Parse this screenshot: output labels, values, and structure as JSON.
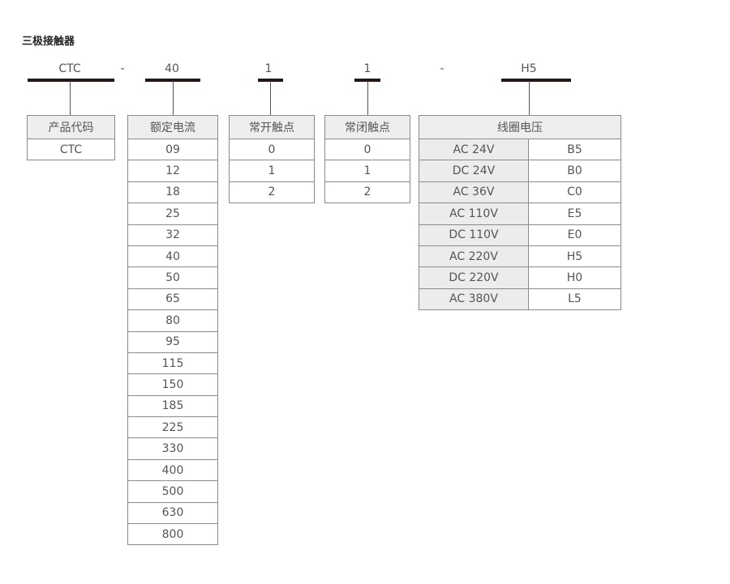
{
  "title": "三极接触器",
  "code": {
    "product": "CTC",
    "sep1": "-",
    "current": "40",
    "no_contact": "1",
    "nc_contact": "1",
    "sep2": "-",
    "coil": "H5"
  },
  "tables": {
    "product": {
      "header": "产品代码",
      "rows": [
        "CTC"
      ]
    },
    "current": {
      "header": "额定电流",
      "rows": [
        "09",
        "12",
        "18",
        "25",
        "32",
        "40",
        "50",
        "65",
        "80",
        "95",
        "115",
        "150",
        "185",
        "225",
        "330",
        "400",
        "500",
        "630",
        "800"
      ]
    },
    "no_contact": {
      "header": "常开触点",
      "rows": [
        "0",
        "1",
        "2"
      ]
    },
    "nc_contact": {
      "header": "常闭触点",
      "rows": [
        "0",
        "1",
        "2"
      ]
    },
    "coil": {
      "header": "线圈电压",
      "rows": [
        [
          "AC 24V",
          "B5"
        ],
        [
          "DC 24V",
          "B0"
        ],
        [
          "AC 36V",
          "C0"
        ],
        [
          "AC 110V",
          "E5"
        ],
        [
          "DC 110V",
          "E0"
        ],
        [
          "AC 220V",
          "H5"
        ],
        [
          "DC 220V",
          "H0"
        ],
        [
          "AC 380V",
          "L5"
        ]
      ]
    }
  }
}
